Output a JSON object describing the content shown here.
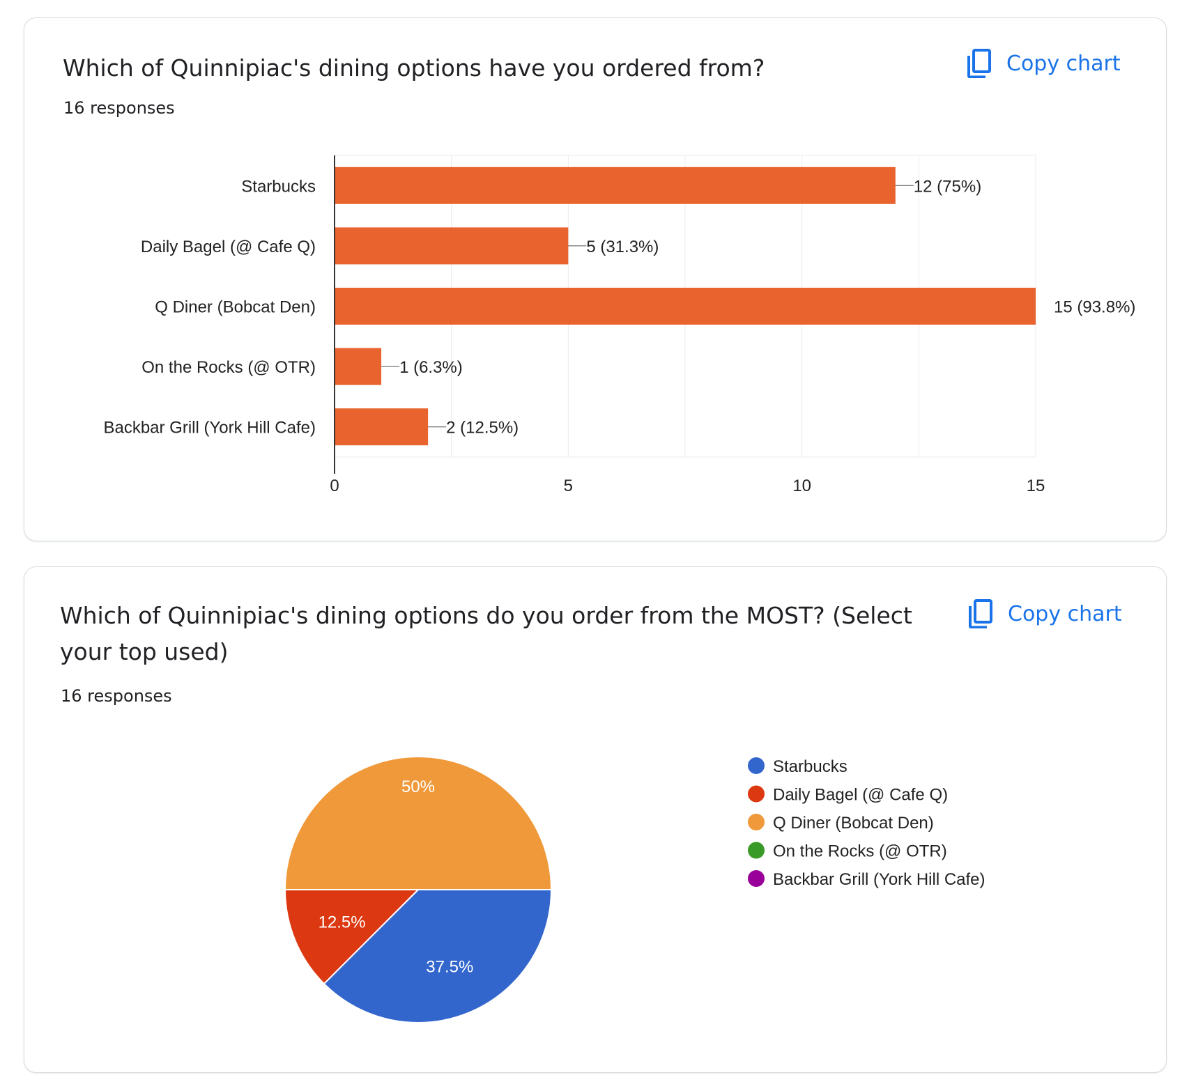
{
  "cards": [
    {
      "title": "Which of Quinnipiac's dining options have you ordered from?",
      "responses": "16 responses",
      "copy_label": "Copy chart"
    },
    {
      "title": "Which of Quinnipiac's dining options do you order from the MOST? (Select your top used)",
      "responses": "16 responses",
      "copy_label": "Copy chart"
    }
  ],
  "colors": {
    "bar": "#e8632e",
    "accent": "#1a73e8",
    "grid": "#ebebeb",
    "axis": "#333333"
  },
  "chart_data": [
    {
      "type": "bar",
      "orientation": "horizontal",
      "categories": [
        "Starbucks",
        "Daily Bagel (@ Cafe Q)",
        "Q Diner (Bobcat Den)",
        "On the Rocks (@ OTR)",
        "Backbar Grill (York Hill Cafe)"
      ],
      "values": [
        12,
        5,
        15,
        1,
        2
      ],
      "value_labels": [
        "12 (75%)",
        "5 (31.3%)",
        "15 (93.8%)",
        "1 (6.3%)",
        "2 (12.5%)"
      ],
      "xlim": [
        0,
        15
      ],
      "xticks": [
        "0",
        "5",
        "10",
        "15"
      ],
      "grid": true
    },
    {
      "type": "pie",
      "slices": [
        {
          "name": "Starbucks",
          "value": 37.5,
          "label": "37.5%",
          "color": "#3366cc"
        },
        {
          "name": "Daily Bagel (@ Cafe Q)",
          "value": 12.5,
          "label": "12.5%",
          "color": "#dc3912"
        },
        {
          "name": "Q Diner (Bobcat Den)",
          "value": 50,
          "label": "50%",
          "color": "#f0993a"
        },
        {
          "name": "On the Rocks (@ OTR)",
          "value": 0,
          "label": "",
          "color": "#3a9a27"
        },
        {
          "name": "Backbar Grill (York Hill Cafe)",
          "value": 0,
          "label": "",
          "color": "#990099"
        }
      ],
      "legend_position": "right"
    }
  ]
}
